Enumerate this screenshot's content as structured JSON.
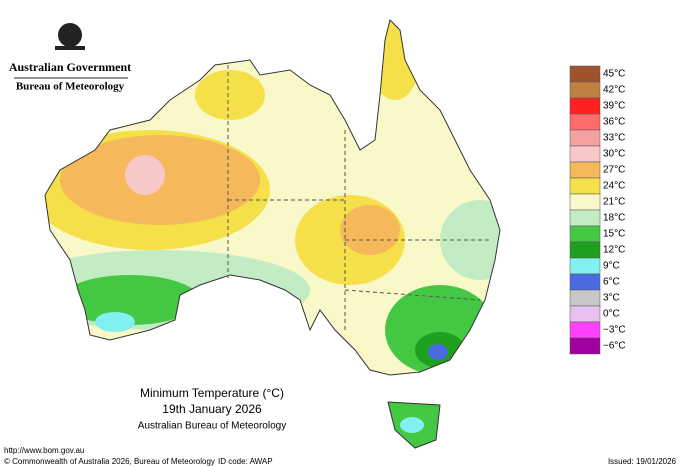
{
  "header": {
    "government": "Australian Government",
    "agency": "Bureau of Meteorology"
  },
  "map": {
    "title": "Minimum Temperature (°C)",
    "date": "19th January 2026",
    "source": "Australian Bureau of Meteorology"
  },
  "legend": [
    {
      "label": "45°C",
      "color": "#a0522d"
    },
    {
      "label": "42°C",
      "color": "#c08040"
    },
    {
      "label": "39°C",
      "color": "#ff2020"
    },
    {
      "label": "36°C",
      "color": "#ff6a6a"
    },
    {
      "label": "33°C",
      "color": "#f4a0a0"
    },
    {
      "label": "30°C",
      "color": "#f8c8c8"
    },
    {
      "label": "27°C",
      "color": "#f5b85a"
    },
    {
      "label": "24°C",
      "color": "#f5e04a"
    },
    {
      "label": "21°C",
      "color": "#f8f8c8"
    },
    {
      "label": "18°C",
      "color": "#c4ecc4"
    },
    {
      "label": "15°C",
      "color": "#44c844"
    },
    {
      "label": "12°C",
      "color": "#1ea01e"
    },
    {
      "label": "9°C",
      "color": "#80f0f0"
    },
    {
      "label": "6°C",
      "color": "#4a6ae0"
    },
    {
      "label": "3°C",
      "color": "#c8c8c8"
    },
    {
      "label": "0°C",
      "color": "#e8c0f0"
    },
    {
      "label": "−3°C",
      "color": "#ff40ff"
    },
    {
      "label": "−6°C",
      "color": "#a000a0"
    }
  ],
  "footer": {
    "url": "http://www.bom.gov.au",
    "copyright": "© Commonwealth of Australia 2026, Bureau of Meteorology",
    "id_code": "ID code: AWAP",
    "issued": "Issued: 19/01/2026"
  }
}
